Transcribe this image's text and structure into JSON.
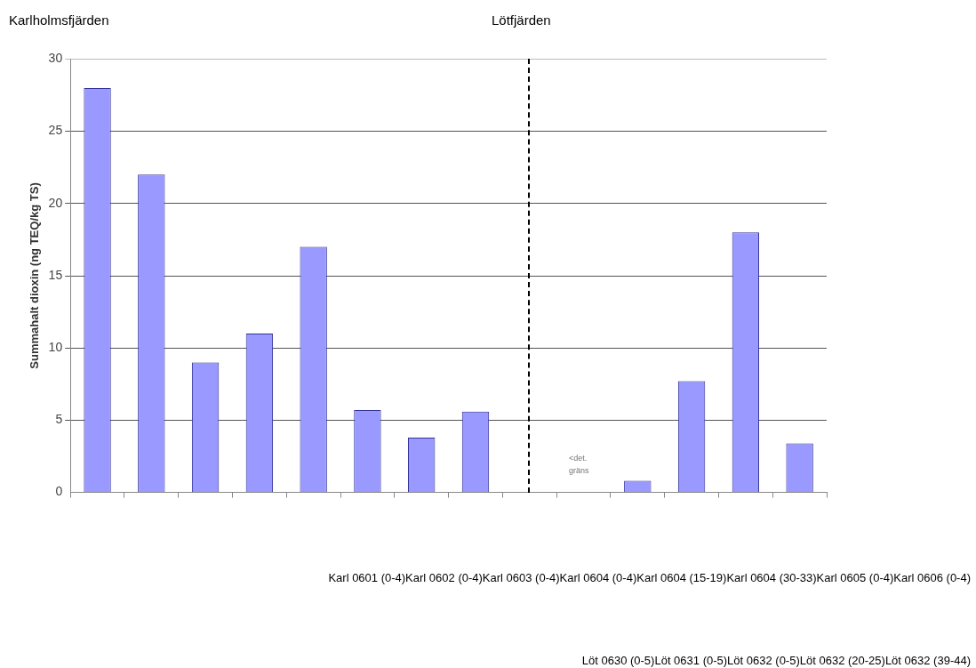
{
  "chart_data": {
    "type": "bar",
    "categories": [
      null,
      null,
      null,
      null,
      null,
      null,
      null,
      null,
      null,
      null,
      null,
      null,
      null,
      null
    ],
    "values": [
      28,
      22,
      9,
      11,
      17,
      5.7,
      3.8,
      5.6,
      null,
      null,
      0.8,
      7.7,
      18,
      3.4
    ],
    "color": "#9999ff",
    "ylabel": "Summahalt dioxin (ng TEQ/kg TS)",
    "ylim": [
      0,
      30
    ],
    "yticks": [
      0,
      5,
      10,
      15,
      20,
      25,
      30
    ],
    "grid": "y",
    "legend": false,
    "tick_labels": "y",
    "annotations": [
      "Karlholmsfjärden",
      "Lötfjärden",
      "<det. gräns",
      "Karl 0601 (0-4)Karl 0602 (0-4)Karl 0603 (0-4)Karl 0604 (0-4)Karl 0604 (15-19)Karl 0604 (30-33)Karl 0605 (0-4)Karl 0606 (0-4)",
      "Löt 0630 (0-5)Löt 0631 (0-5)Löt 0632 (0-5)Löt 0632 (20-25)Löt 0632 (39-44)"
    ]
  }
}
